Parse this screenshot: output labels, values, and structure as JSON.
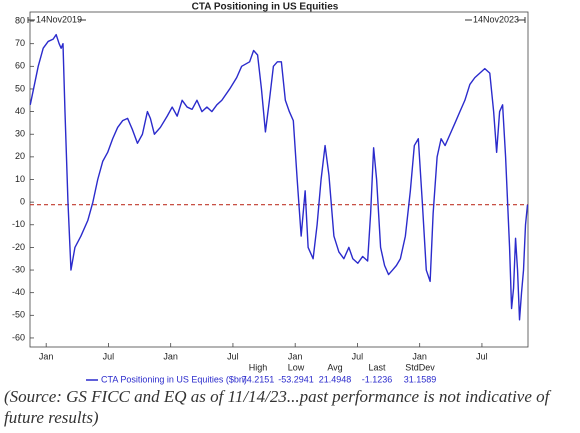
{
  "chart_data": {
    "type": "line",
    "title": "CTA Positioning in US Equities",
    "start_label": "14Nov2019",
    "end_label": "14Nov2023",
    "xlim": [
      2019.87,
      2023.87
    ],
    "xticks": [
      {
        "value": 2020.0,
        "label": "Jan"
      },
      {
        "value": 2020.5,
        "label": "Jul"
      },
      {
        "value": 2021.0,
        "label": "Jan"
      },
      {
        "value": 2021.5,
        "label": "Jul"
      },
      {
        "value": 2022.0,
        "label": "Jan"
      },
      {
        "value": 2022.5,
        "label": "Jul"
      },
      {
        "value": 2023.0,
        "label": "Jan"
      },
      {
        "value": 2023.5,
        "label": "Jul"
      }
    ],
    "ylim": [
      -64,
      84
    ],
    "yticks": [
      80,
      70,
      60,
      50,
      40,
      30,
      20,
      10,
      0,
      -10,
      -20,
      -30,
      -40,
      -50,
      -60
    ],
    "x": [
      2019.872,
      2019.936,
      2019.976,
      2020.016,
      2020.056,
      2020.08,
      2020.104,
      2020.12,
      2020.135,
      2020.151,
      2020.175,
      2020.199,
      2020.231,
      2020.279,
      2020.335,
      2020.375,
      2020.414,
      2020.454,
      2020.494,
      2020.534,
      2020.574,
      2020.614,
      2020.654,
      2020.693,
      2020.733,
      2020.773,
      2020.813,
      2020.837,
      2020.869,
      2020.917,
      2020.972,
      2021.012,
      2021.052,
      2021.092,
      2021.132,
      2021.172,
      2021.211,
      2021.251,
      2021.291,
      2021.331,
      2021.371,
      2021.411,
      2021.474,
      2021.53,
      2021.57,
      2021.634,
      2021.666,
      2021.698,
      2021.729,
      2021.761,
      2021.793,
      2021.825,
      2021.857,
      2021.889,
      2021.921,
      2021.953,
      2021.985,
      2022.016,
      2022.048,
      2022.08,
      2022.104,
      2022.144,
      2022.176,
      2022.208,
      2022.24,
      2022.271,
      2022.311,
      2022.351,
      2022.391,
      2022.431,
      2022.463,
      2022.503,
      2022.542,
      2022.582,
      2022.606,
      2022.63,
      2022.654,
      2022.686,
      2022.718,
      2022.75,
      2022.782,
      2022.813,
      2022.845,
      2022.885,
      2022.925,
      2022.957,
      2022.989,
      2023.021,
      2023.053,
      2023.084,
      2023.108,
      2023.14,
      2023.172,
      2023.204,
      2023.244,
      2023.284,
      2023.323,
      2023.363,
      2023.403,
      2023.443,
      2023.483,
      2023.523,
      2023.563,
      2023.594,
      2023.618,
      2023.642,
      2023.666,
      2023.69,
      2023.722,
      2023.738,
      2023.754,
      2023.77,
      2023.786,
      2023.802,
      2023.818,
      2023.834,
      2023.85,
      2023.866
    ],
    "series": [
      {
        "name": "CTA Positioning in US Equities ($bn)",
        "color": "#2b2bcc",
        "values": [
          43,
          60,
          68,
          71,
          72,
          74,
          70,
          68,
          70,
          40,
          0,
          -30,
          -20,
          -15,
          -8,
          0,
          10,
          18,
          22,
          28,
          33,
          36,
          37,
          32,
          26,
          30,
          40,
          37,
          30,
          33,
          38,
          42,
          38,
          45,
          42,
          41,
          45,
          40,
          42,
          40,
          43,
          45,
          50,
          55,
          60,
          62,
          67,
          65,
          50,
          31,
          45,
          60,
          62,
          62,
          45,
          40,
          36,
          10,
          -15,
          5,
          -20,
          -25,
          -10,
          10,
          25,
          12,
          -15,
          -22,
          -25,
          -20,
          -25,
          -27,
          -24,
          -26,
          -5,
          24,
          10,
          -20,
          -28,
          -32,
          -30,
          -28,
          -25,
          -15,
          5,
          25,
          28,
          0,
          -30,
          -35,
          -5,
          20,
          28,
          25,
          30,
          35,
          40,
          45,
          52,
          55,
          57,
          59,
          57,
          40,
          22,
          40,
          43,
          20,
          -20,
          -47,
          -38,
          -16,
          -30,
          -52,
          -40,
          -30,
          -10,
          -1.1236
        ]
      }
    ],
    "stats": {
      "labels": [
        "High",
        "Low",
        "Avg",
        "Last",
        "StdDev"
      ],
      "values": [
        74.2151,
        -53.2941,
        21.4948,
        -1.1236,
        31.1589
      ]
    }
  },
  "caption": "(Source: GS FICC and EQ as of 11/14/23...past performance is not indicative of future results)"
}
